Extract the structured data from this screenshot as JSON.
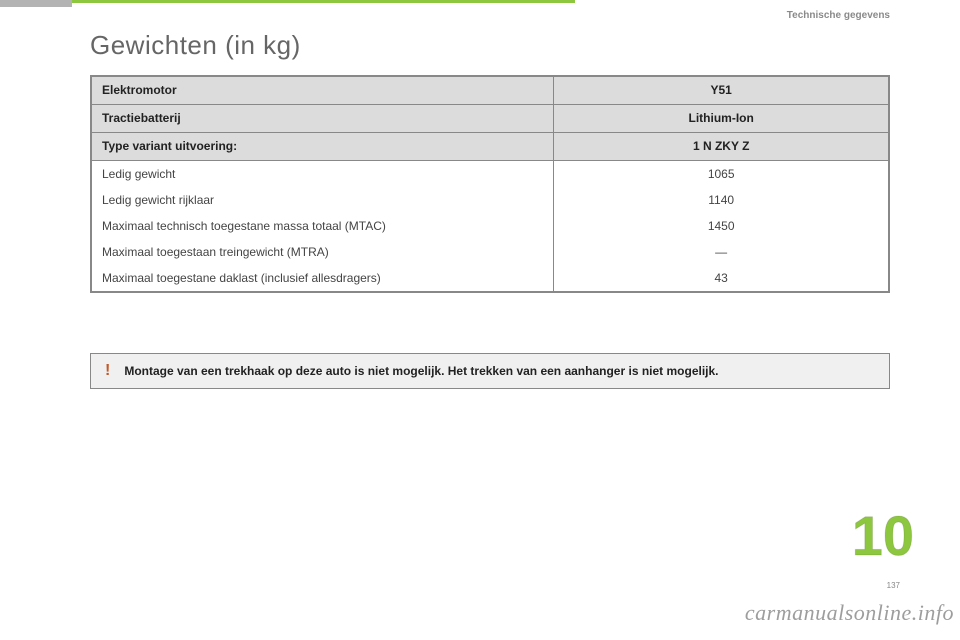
{
  "header": {
    "category": "Technische gegevens",
    "title": "Gewichten (in kg)",
    "accent_color": "#8dc63f"
  },
  "table": {
    "rows": [
      {
        "kind": "header",
        "label": "Elektromotor",
        "value": "Y51"
      },
      {
        "kind": "header",
        "label": "Tractiebatterij",
        "value": "Lithium-Ion"
      },
      {
        "kind": "header",
        "label": "Type variant uitvoering:",
        "value": "1 N ZKY Z"
      },
      {
        "kind": "body",
        "label": "Ledig gewicht",
        "value": "1065"
      },
      {
        "kind": "body",
        "label": "Ledig gewicht rijklaar",
        "value": "1140"
      },
      {
        "kind": "body",
        "label": "Maximaal technisch toegestane massa totaal (MTAC)",
        "value": "1450"
      },
      {
        "kind": "body",
        "label": "Maximaal toegestaan treingewicht (MTRA)",
        "value": "—"
      },
      {
        "kind": "body",
        "label": "Maximaal toegestane daklast (inclusief allesdragers)",
        "value": "43"
      }
    ],
    "header_bg": "#dcdcdc",
    "body_bg": "#ffffff",
    "border_color": "#888888"
  },
  "warning": {
    "icon": "!",
    "text": "Montage van een trekhaak op deze auto is niet mogelijk. Het trekken van een aanhanger is niet mogelijk.",
    "bg_color": "#f0f0f0",
    "icon_color": "#c05a2a"
  },
  "footer": {
    "chapter_number": "10",
    "page_number": "137",
    "watermark": "carmanualsonline.info"
  }
}
